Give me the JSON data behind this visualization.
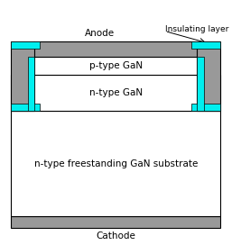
{
  "fig_width": 2.67,
  "fig_height": 2.72,
  "dpi": 100,
  "bg_color": "#ffffff",
  "colors": {
    "gray": "#999999",
    "cyan": "#00EFEF",
    "white": "#FFFFFF",
    "black": "#000000"
  },
  "labels": {
    "anode": "Anode",
    "cathode": "Cathode",
    "insulating_layer": "Insulating layer",
    "p_type_gan": "p-type GaN",
    "n_type_gan": "n-type GaN",
    "substrate": "n-type freestanding GaN substrate"
  }
}
